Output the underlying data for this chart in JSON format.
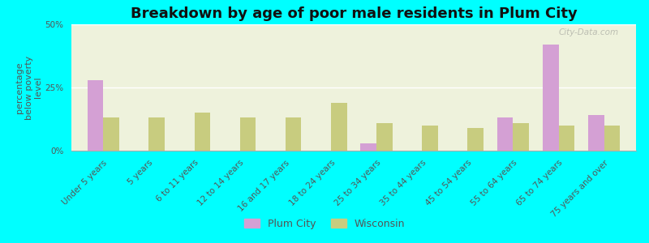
{
  "title": "Breakdown by age of poor male residents in Plum City",
  "ylabel": "percentage\nbelow poverty\nlevel",
  "categories": [
    "Under 5 years",
    "5 years",
    "6 to 11 years",
    "12 to 14 years",
    "16 and 17 years",
    "18 to 24 years",
    "25 to 34 years",
    "35 to 44 years",
    "45 to 54 years",
    "55 to 64 years",
    "65 to 74 years",
    "75 years and over"
  ],
  "plum_city": [
    28,
    0,
    0,
    0,
    0,
    0,
    3,
    0,
    0,
    13,
    42,
    14
  ],
  "wisconsin": [
    13,
    13,
    15,
    13,
    13,
    19,
    11,
    10,
    9,
    11,
    10,
    10
  ],
  "plum_city_color": "#d4a0d4",
  "wisconsin_color": "#c8cc7f",
  "background_color": "#00ffff",
  "plot_bg": "#eef2dc",
  "ylim": [
    0,
    50
  ],
  "yticks": [
    0,
    25,
    50
  ],
  "ytick_labels": [
    "0%",
    "25%",
    "50%"
  ],
  "bar_width": 0.35,
  "title_fontsize": 13,
  "label_fontsize": 8,
  "tick_fontsize": 7.5,
  "watermark": "City-Data.com",
  "legend_labels": [
    "Plum City",
    "Wisconsin"
  ]
}
